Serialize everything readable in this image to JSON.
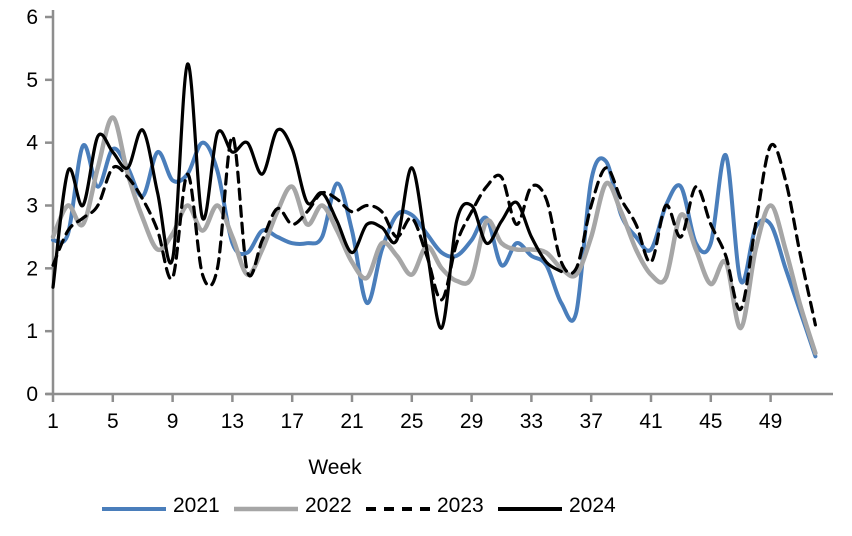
{
  "axis": {
    "x_title": "Week",
    "y_ticks": [
      0,
      1,
      2,
      3,
      4,
      5,
      6
    ],
    "x_ticks": [
      1,
      5,
      9,
      13,
      17,
      21,
      25,
      29,
      33,
      37,
      41,
      45,
      49
    ],
    "axis_color": "#8e8e8e",
    "ylim": [
      0,
      6
    ],
    "xlim": [
      1,
      52
    ]
  },
  "chart_data": {
    "type": "line",
    "title": "",
    "xlabel": "Week",
    "ylabel": "",
    "ylim": [
      0,
      6
    ],
    "grid": false,
    "smoothed": true,
    "legend_position": "bottom",
    "x": [
      1,
      2,
      3,
      4,
      5,
      6,
      7,
      8,
      9,
      10,
      11,
      12,
      13,
      14,
      15,
      16,
      17,
      18,
      19,
      20,
      21,
      22,
      23,
      24,
      25,
      26,
      27,
      28,
      29,
      30,
      31,
      32,
      33,
      34,
      35,
      36,
      37,
      38,
      39,
      40,
      41,
      42,
      43,
      44,
      45,
      46,
      47,
      48,
      49,
      50,
      51,
      52
    ],
    "series": [
      {
        "name": "2021",
        "color": "#4a7ebb",
        "style": "solid",
        "width": 4,
        "values": [
          2.45,
          2.55,
          3.95,
          3.3,
          3.9,
          3.6,
          3.15,
          3.85,
          3.4,
          3.5,
          4.0,
          3.55,
          2.4,
          2.25,
          2.6,
          2.5,
          2.4,
          2.4,
          2.5,
          3.35,
          2.6,
          1.45,
          2.3,
          2.85,
          2.85,
          2.55,
          2.25,
          2.2,
          2.45,
          2.8,
          2.05,
          2.4,
          2.2,
          2.05,
          1.45,
          1.3,
          3.4,
          3.7,
          2.85,
          2.5,
          2.3,
          3.0,
          3.3,
          2.4,
          2.4,
          3.8,
          1.8,
          2.65,
          2.7,
          2.0,
          1.3,
          0.6
        ]
      },
      {
        "name": "2022",
        "color": "#a6a6a6",
        "style": "solid",
        "width": 4.5,
        "values": [
          2.5,
          3.0,
          2.7,
          3.6,
          4.4,
          3.5,
          2.8,
          2.3,
          2.55,
          3.0,
          2.6,
          3.0,
          2.5,
          1.9,
          2.3,
          2.9,
          3.3,
          2.7,
          3.0,
          2.6,
          2.1,
          1.85,
          2.4,
          2.2,
          1.9,
          2.35,
          2.0,
          1.8,
          1.85,
          2.75,
          2.4,
          2.3,
          2.3,
          2.25,
          2.0,
          1.9,
          2.5,
          3.35,
          2.9,
          2.3,
          1.9,
          1.85,
          2.85,
          2.3,
          1.75,
          2.1,
          1.05,
          2.3,
          3.0,
          2.3,
          1.4,
          0.65
        ]
      },
      {
        "name": "2023",
        "color": "#000000",
        "style": "dashed",
        "width": 3.2,
        "values": [
          2.05,
          2.6,
          2.8,
          3.0,
          3.6,
          3.45,
          3.1,
          2.6,
          1.85,
          3.5,
          1.9,
          2.0,
          4.1,
          1.95,
          2.45,
          2.95,
          2.7,
          2.9,
          3.2,
          3.1,
          2.9,
          3.0,
          2.9,
          2.5,
          2.8,
          2.2,
          1.5,
          2.4,
          2.9,
          3.3,
          3.45,
          2.7,
          3.3,
          3.1,
          2.1,
          2.0,
          3.0,
          3.6,
          3.1,
          2.7,
          2.1,
          3.0,
          2.5,
          3.3,
          2.7,
          2.2,
          1.35,
          2.7,
          3.95,
          3.4,
          2.2,
          1.1
        ]
      },
      {
        "name": "2024",
        "color": "#000000",
        "style": "solid",
        "width": 3.2,
        "values": [
          1.7,
          3.55,
          3.0,
          4.1,
          3.85,
          3.6,
          4.2,
          3.2,
          2.15,
          5.25,
          2.8,
          4.15,
          3.85,
          4.0,
          3.5,
          4.2,
          3.9,
          3.05,
          3.2,
          2.75,
          2.25,
          2.7,
          2.65,
          2.45,
          3.6,
          2.3,
          1.05,
          2.75,
          3.0,
          2.4,
          2.75,
          3.05,
          2.5,
          2.1,
          1.95
        ]
      }
    ]
  },
  "legend": {
    "items": [
      "2021",
      "2022",
      "2023",
      "2024"
    ]
  }
}
